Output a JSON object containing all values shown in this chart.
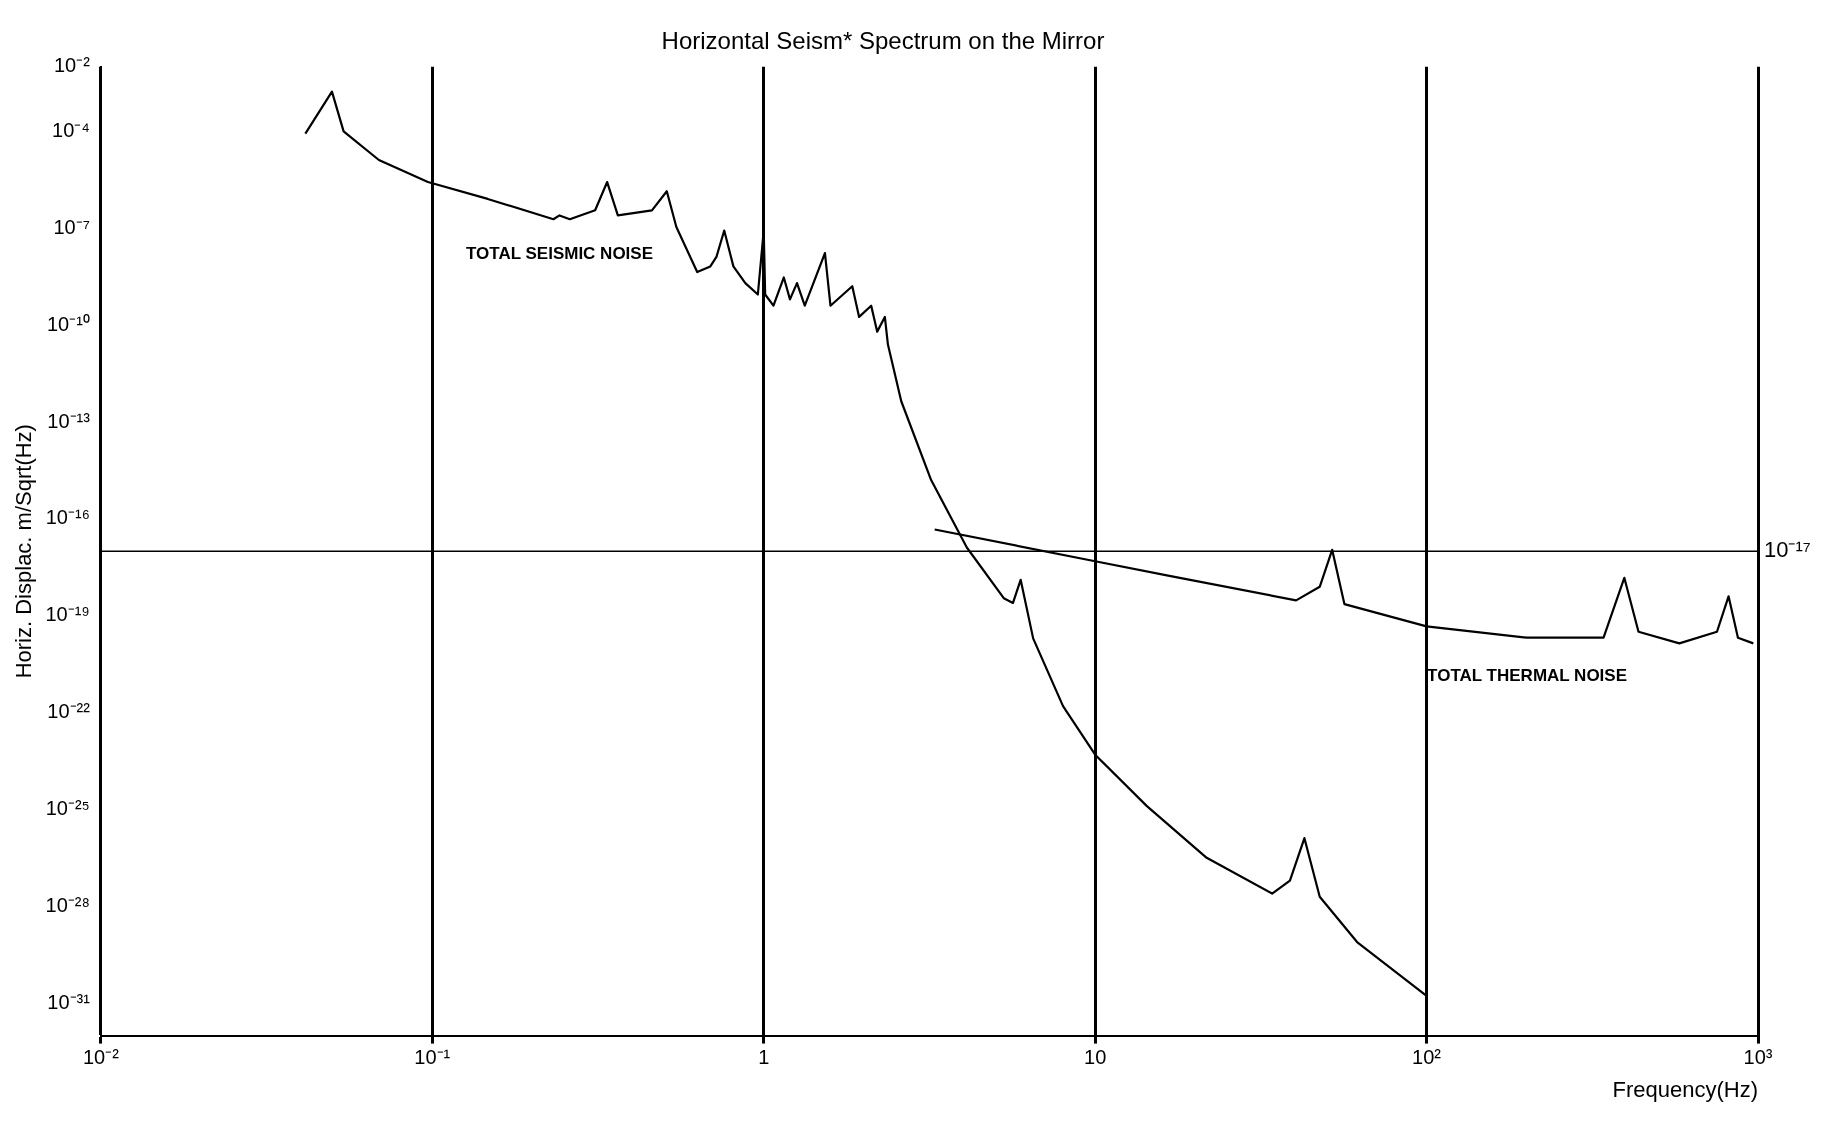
{
  "chart_data": {
    "type": "line",
    "title": "Horizontal Seism* Spectrum on the Mirror",
    "xlabel": "Frequency(Hz)",
    "ylabel": "Horiz. Displac. m/Sqrt(Hz)",
    "log": "xy",
    "grid": "x",
    "legend": false,
    "marker": "none",
    "line_style": "solid",
    "xlim": [
      0.01,
      1000
    ],
    "xticks": [
      {
        "value": 0.01,
        "label": "10⁻²"
      },
      {
        "value": 0.1,
        "label": "10⁻¹"
      },
      1,
      10,
      {
        "value": 100,
        "label": "10²"
      },
      {
        "value": 1000,
        "label": "10³"
      }
    ],
    "ylim": [
      1e-32,
      0.01
    ],
    "yticks": [
      {
        "value": 0.01,
        "label": "10⁻²"
      },
      {
        "value": 0.0001,
        "label": "10⁻⁴"
      },
      {
        "value": 1e-07,
        "label": "10⁻⁷"
      },
      {
        "value": 1e-10,
        "label": "10⁻¹⁰"
      },
      {
        "value": 1e-13,
        "label": "10⁻¹³"
      },
      {
        "value": 1e-16,
        "label": "10⁻¹⁶"
      },
      {
        "value": 1e-19,
        "label": "10⁻¹⁹"
      },
      {
        "value": 1e-22,
        "label": "10⁻²²"
      },
      {
        "value": 1e-25,
        "label": "10⁻²⁵"
      },
      {
        "value": 1e-28,
        "label": "10⁻²⁸"
      },
      {
        "value": 1e-31,
        "label": "10⁻³¹"
      }
    ],
    "ref_lines": [
      {
        "axis": "y",
        "value": 1e-17,
        "label": "10⁻¹⁷",
        "color": "#000000"
      }
    ],
    "series": [
      {
        "name": "TOTAL SEISMIC NOISE",
        "color": "#000000",
        "x": [
          0.0414,
          0.0498,
          0.054,
          0.069,
          0.097,
          0.147,
          0.232,
          0.242,
          0.26,
          0.31,
          0.337,
          0.363,
          0.46,
          0.51,
          0.545,
          0.63,
          0.69,
          0.72,
          0.76,
          0.81,
          0.88,
          0.96,
          1.0,
          1.01,
          1.07,
          1.15,
          1.2,
          1.26,
          1.33,
          1.53,
          1.59,
          1.85,
          1.94,
          2.11,
          2.2,
          2.32,
          2.37,
          2.6,
          3.2,
          4.1,
          5.3,
          5.65,
          5.96,
          6.5,
          8.0,
          10,
          14.3,
          21.7,
          34.2,
          38.7,
          42.8,
          47.6,
          61.7,
          100
        ],
        "values": [
          8.5e-05,
          0.0017,
          0.0001,
          1.3e-05,
          2.7e-06,
          8.1e-07,
          1.9e-07,
          2.5e-07,
          1.9e-07,
          3.6e-07,
          2.7e-06,
          2.5e-07,
          3.6e-07,
          1.4e-06,
          1.1e-07,
          4.4e-09,
          6.6e-09,
          1.3e-08,
          8.5e-08,
          6.6e-09,
          2e-09,
          8.9e-10,
          8.5e-08,
          8.9e-10,
          4e-10,
          3e-09,
          6.3e-10,
          2e-09,
          4e-10,
          1.7e-08,
          4e-10,
          1.6e-09,
          1.8e-10,
          4e-10,
          6.3e-11,
          1.8e-10,
          2.5e-11,
          4.4e-13,
          1.6e-15,
          1.3e-17,
          3.5e-19,
          2.5e-19,
          1.3e-18,
          2e-20,
          1.6e-22,
          5e-24,
          1.3e-25,
          3.2e-27,
          2.5e-28,
          6.3e-28,
          1.3e-26,
          2e-28,
          7.9e-30,
          1.7e-31
        ]
      },
      {
        "name": "TOTAL THERMAL NOISE",
        "color": "#000000",
        "x": [
          3.28,
          10,
          16.9,
          40.4,
          47.6,
          51.9,
          56.5,
          100,
          201,
          342,
          395,
          436,
          579,
          752,
          815,
          870,
          968
        ],
        "values": [
          4.7e-17,
          4.9e-18,
          1.7e-18,
          3e-19,
          7.9e-19,
          1.1e-17,
          2.3e-19,
          4.7e-20,
          2.1e-20,
          2.1e-20,
          1.5e-18,
          3.2e-20,
          1.4e-20,
          3.2e-20,
          4e-19,
          2.1e-20,
          1.4e-20
        ]
      }
    ]
  }
}
